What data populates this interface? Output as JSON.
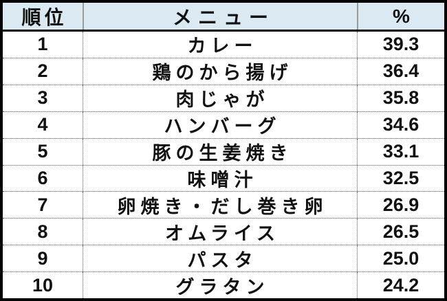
{
  "table": {
    "columns": {
      "rank": "順位",
      "menu": "メニュー",
      "percent": "%"
    },
    "rows": [
      {
        "rank": "1",
        "menu": "カレー",
        "percent": "39.3"
      },
      {
        "rank": "2",
        "menu": "鶏のから揚げ",
        "percent": "36.4"
      },
      {
        "rank": "3",
        "menu": "肉じゃが",
        "percent": "35.8"
      },
      {
        "rank": "4",
        "menu": "ハンバーグ",
        "percent": "34.6"
      },
      {
        "rank": "5",
        "menu": "豚の生姜焼き",
        "percent": "33.1"
      },
      {
        "rank": "6",
        "menu": "味噌汁",
        "percent": "32.5"
      },
      {
        "rank": "7",
        "menu": "卵焼き・だし巻き卵",
        "percent": "26.9"
      },
      {
        "rank": "8",
        "menu": "オムライス",
        "percent": "26.5"
      },
      {
        "rank": "9",
        "menu": "パスタ",
        "percent": "25.0"
      },
      {
        "rank": "10",
        "menu": "グラタン",
        "percent": "24.2"
      }
    ],
    "colors": {
      "header_bg": "#dbe9f2",
      "outer_border": "#000000",
      "grid_line": "#555555"
    }
  }
}
